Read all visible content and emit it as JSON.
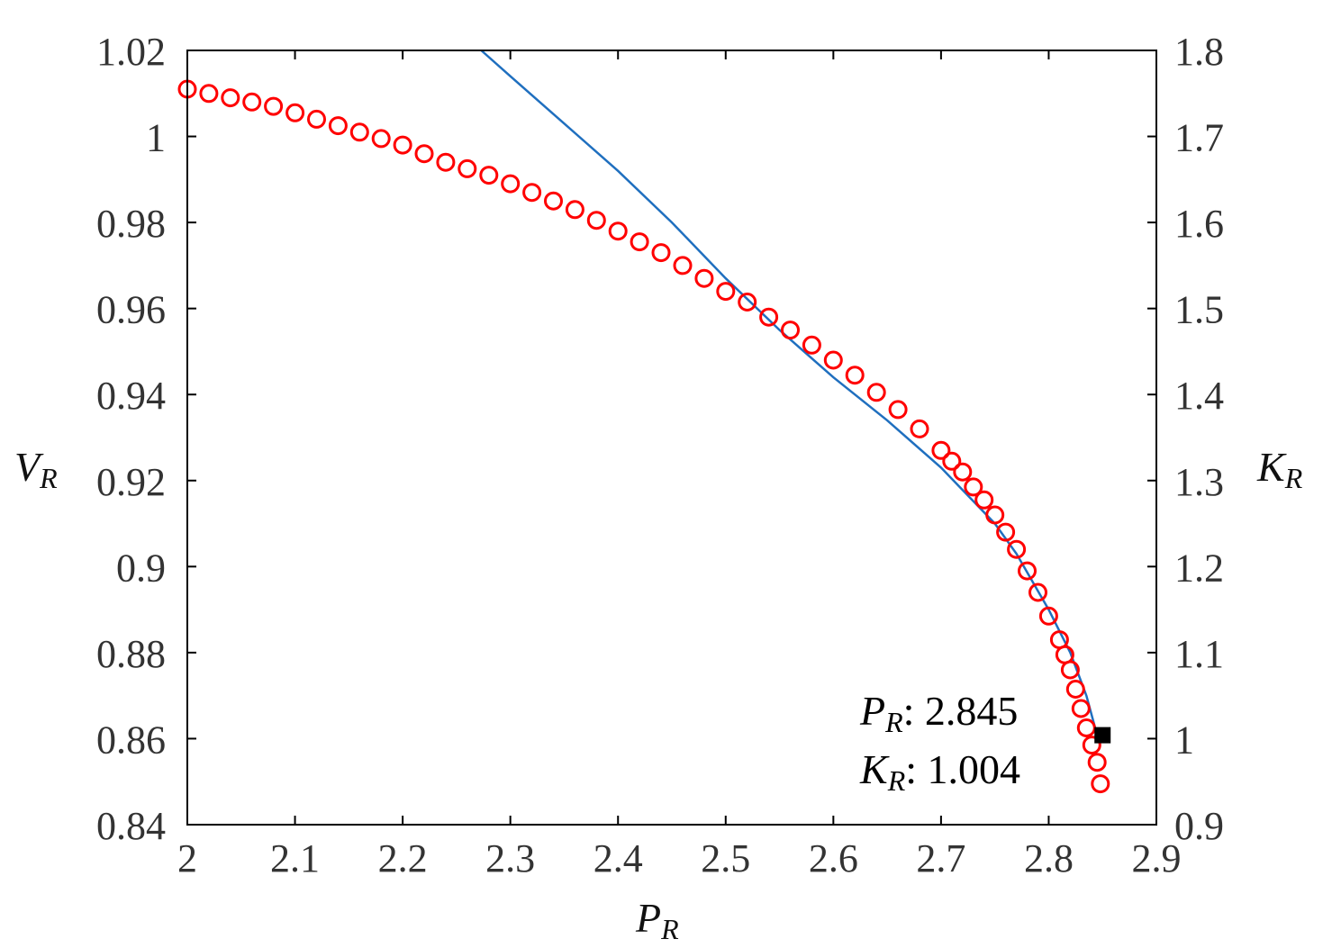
{
  "chart_data": {
    "type": "line",
    "x_axis": {
      "label_main": "P",
      "label_sub": "R",
      "range": [
        2,
        2.9
      ],
      "ticks": [
        "2",
        "2.1",
        "2.2",
        "2.3",
        "2.4",
        "2.5",
        "2.6",
        "2.7",
        "2.8",
        "2.9"
      ]
    },
    "y_left": {
      "label_main": "V",
      "label_sub": "R",
      "range": [
        0.84,
        1.02
      ],
      "ticks": [
        "0.84",
        "0.86",
        "0.88",
        "0.9",
        "0.92",
        "0.94",
        "0.96",
        "0.98",
        "1",
        "1.02"
      ]
    },
    "y_right": {
      "label_main": "K",
      "label_sub": "R",
      "range": [
        0.9,
        1.8
      ],
      "ticks": [
        "0.9",
        "1",
        "1.1",
        "1.2",
        "1.3",
        "1.4",
        "1.5",
        "1.6",
        "1.7",
        "1.8"
      ]
    },
    "series": [
      {
        "axis": "left",
        "marker": "circle",
        "color": "#ff0000",
        "x": [
          2.0,
          2.02,
          2.04,
          2.06,
          2.08,
          2.1,
          2.12,
          2.14,
          2.16,
          2.18,
          2.2,
          2.22,
          2.24,
          2.26,
          2.28,
          2.3,
          2.32,
          2.34,
          2.36,
          2.38,
          2.4,
          2.42,
          2.44,
          2.46,
          2.48,
          2.5,
          2.52,
          2.54,
          2.56,
          2.58,
          2.6,
          2.62,
          2.64,
          2.66,
          2.68,
          2.7,
          2.71,
          2.72,
          2.73,
          2.74,
          2.75,
          2.76,
          2.77,
          2.78,
          2.79,
          2.8,
          2.81,
          2.815,
          2.82,
          2.825,
          2.83,
          2.835,
          2.84,
          2.845,
          2.848
        ],
        "y": [
          1.011,
          1.01,
          1.009,
          1.008,
          1.007,
          1.0055,
          1.004,
          1.0025,
          1.001,
          0.9995,
          0.998,
          0.996,
          0.994,
          0.9925,
          0.991,
          0.989,
          0.987,
          0.985,
          0.983,
          0.9805,
          0.978,
          0.9755,
          0.973,
          0.97,
          0.967,
          0.964,
          0.9615,
          0.958,
          0.955,
          0.9515,
          0.948,
          0.9445,
          0.9405,
          0.9365,
          0.932,
          0.927,
          0.9245,
          0.922,
          0.9185,
          0.9155,
          0.912,
          0.908,
          0.904,
          0.899,
          0.894,
          0.8885,
          0.883,
          0.8795,
          0.876,
          0.8715,
          0.867,
          0.8625,
          0.8585,
          0.8545,
          0.8495
        ]
      },
      {
        "axis": "right",
        "marker": "none",
        "color": "#1f6fbf",
        "x": [
          2.273,
          2.3,
          2.35,
          2.4,
          2.45,
          2.5,
          2.55,
          2.6,
          2.65,
          2.7,
          2.75,
          2.77,
          2.8,
          2.82,
          2.835,
          2.845
        ],
        "y": [
          1.8,
          1.77,
          1.715,
          1.66,
          1.6,
          1.535,
          1.475,
          1.42,
          1.37,
          1.315,
          1.25,
          1.215,
          1.15,
          1.1,
          1.05,
          1.004
        ]
      }
    ],
    "marker_point": {
      "axis": "right",
      "x": 2.85,
      "y": 1.004,
      "color": "#000000"
    },
    "annotation": {
      "line1_main": "P",
      "line1_sub": "R",
      "line1_value": ": 2.845",
      "line2_main": "K",
      "line2_sub": "R",
      "line2_value": ": 1.004"
    }
  }
}
